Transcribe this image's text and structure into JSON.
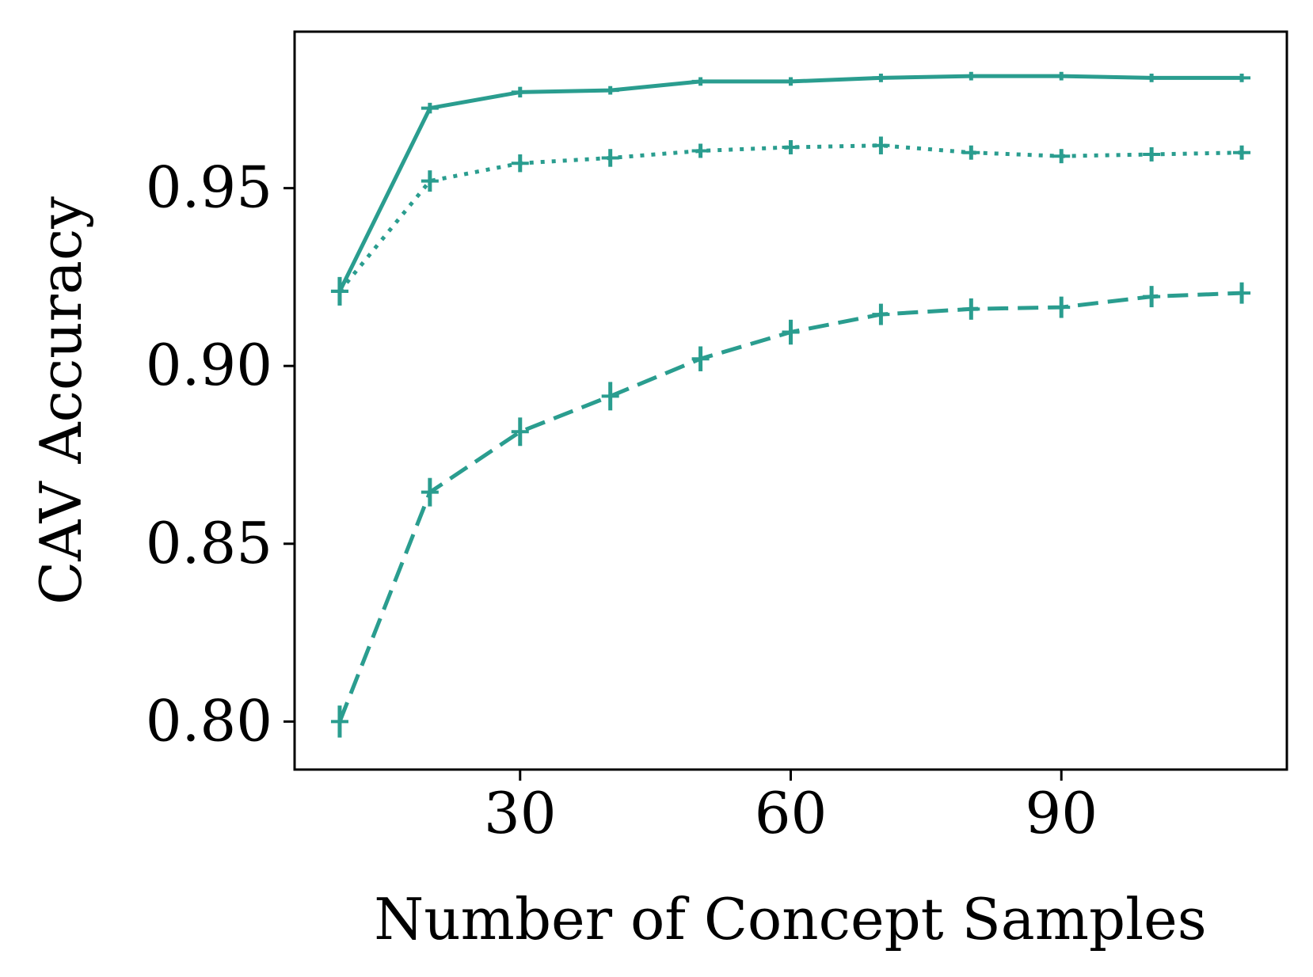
{
  "chart_data": {
    "type": "line",
    "title": "",
    "xlabel": "Number of Concept Samples",
    "ylabel": "CAV Accuracy",
    "xlim": [
      5,
      115
    ],
    "ylim": [
      0.7865,
      0.994
    ],
    "xticks": [
      30,
      60,
      90
    ],
    "xtick_labels": [
      "30",
      "60",
      "90"
    ],
    "yticks": [
      0.8,
      0.85,
      0.9,
      0.95
    ],
    "ytick_labels": [
      "0.80",
      "0.85",
      "0.90",
      "0.95"
    ],
    "grid": false,
    "legend": "none",
    "x": [
      10,
      20,
      30,
      40,
      50,
      60,
      70,
      80,
      90,
      100,
      110
    ],
    "series": [
      {
        "name": "solid",
        "line_style": "solid",
        "color": "#2a9d8f",
        "values": [
          0.921,
          0.9725,
          0.977,
          0.9775,
          0.98,
          0.98,
          0.981,
          0.9815,
          0.9815,
          0.981,
          0.981
        ],
        "errors": [
          0.004,
          0.0015,
          0.0015,
          0.0012,
          0.0012,
          0.0012,
          0.0012,
          0.0012,
          0.0012,
          0.0012,
          0.0012
        ]
      },
      {
        "name": "dotted",
        "line_style": "dotted",
        "color": "#2a9d8f",
        "values": [
          0.921,
          0.952,
          0.957,
          0.9585,
          0.9605,
          0.9615,
          0.962,
          0.96,
          0.959,
          0.9595,
          0.96
        ],
        "errors": [
          0.004,
          0.003,
          0.0025,
          0.0025,
          0.002,
          0.002,
          0.0025,
          0.002,
          0.002,
          0.002,
          0.002
        ]
      },
      {
        "name": "dashed",
        "line_style": "dashed",
        "color": "#2a9d8f",
        "values": [
          0.8,
          0.8645,
          0.8815,
          0.8915,
          0.902,
          0.9095,
          0.9145,
          0.916,
          0.9165,
          0.9195,
          0.9205
        ],
        "errors": [
          0.0045,
          0.004,
          0.004,
          0.004,
          0.0035,
          0.0035,
          0.003,
          0.003,
          0.003,
          0.003,
          0.003
        ]
      }
    ]
  }
}
